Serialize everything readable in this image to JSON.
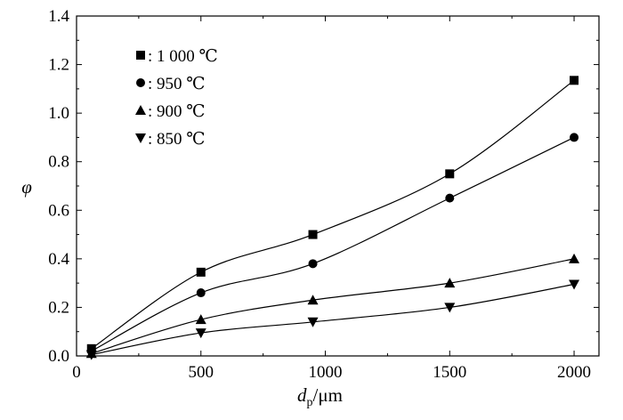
{
  "chart_data": {
    "type": "line",
    "x": [
      60,
      500,
      950,
      1500,
      2000
    ],
    "xlim": [
      0,
      2100
    ],
    "ylim": [
      0,
      1.4
    ],
    "xticks": [
      0,
      500,
      1000,
      1500,
      2000
    ],
    "yticks": [
      0.0,
      0.2,
      0.4,
      0.6,
      0.8,
      1.0,
      1.2,
      1.4
    ],
    "xtick_labels": [
      "0",
      "500",
      "1000",
      "1500",
      "2000"
    ],
    "ytick_labels": [
      "0.0",
      "0.2",
      "0.4",
      "0.6",
      "0.8",
      "1.0",
      "1.2",
      "1.4"
    ],
    "xlabel": {
      "symbol": "d",
      "subscript": "p",
      "unit": "/μm"
    },
    "ylabel": "φ",
    "grid": false,
    "legend_position": "top-left",
    "series": [
      {
        "name": ": 1 000 ℃",
        "marker": "square",
        "values": [
          0.03,
          0.345,
          0.5,
          0.75,
          1.135
        ]
      },
      {
        "name": ": 950 ℃",
        "marker": "circle",
        "values": [
          0.02,
          0.26,
          0.38,
          0.65,
          0.9
        ]
      },
      {
        "name": ": 900 ℃",
        "marker": "triangle-up",
        "values": [
          0.01,
          0.15,
          0.23,
          0.3,
          0.4
        ]
      },
      {
        "name": ": 850 ℃",
        "marker": "triangle-down",
        "values": [
          0.005,
          0.095,
          0.14,
          0.2,
          0.295
        ]
      }
    ]
  }
}
